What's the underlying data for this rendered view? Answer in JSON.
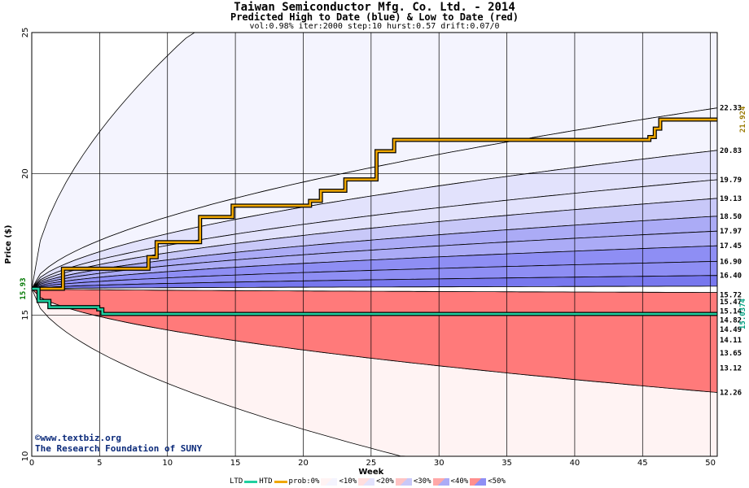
{
  "title": "Taiwan Semiconductor Mfg. Co. Ltd.  - 2014",
  "subtitle": "Predicted High to Date (blue) &  Low to Date (red)",
  "params": "vol:0.98% iter:2000 step:10 hurst:0.57 drift:0.07/0",
  "watermark": {
    "line1": "©www.textbiz.org",
    "line2": "The Research Foundation of SUNY"
  },
  "legend": {
    "ltd": "LTD",
    "htd": "HTD",
    "prob": "prob:0%",
    "p10": "<10%",
    "p20": "<20%",
    "p30": "<30%",
    "p40": "<40%",
    "p50": "<50%"
  },
  "colors": {
    "htd": "#f0a800",
    "ltd": "#20d0a0",
    "blue_bands": [
      "#f4f4fe",
      "#e2e2fc",
      "#c8c8f8",
      "#ababf6",
      "#8e8ef4",
      "#7777ee"
    ],
    "red_bands": [
      "#fff3f3",
      "#ffdede",
      "#ffc4c4",
      "#ffa8a8",
      "#ff8e8e",
      "#ff7a7a"
    ]
  },
  "chart_data": {
    "type": "area",
    "xlabel": "Week",
    "ylabel": "Price ($)",
    "xlim": [
      0,
      50.5
    ],
    "ylim": [
      10,
      25
    ],
    "xticks": [
      0,
      5,
      10,
      15,
      20,
      25,
      30,
      35,
      40,
      45,
      50
    ],
    "yticks": [
      10,
      15,
      20,
      25
    ],
    "grid": true,
    "start_price": 15.93,
    "start_price_label": "15.93",
    "upper_band_end_values": [
      22.33,
      20.83,
      19.79,
      19.13,
      18.5,
      17.97,
      17.45,
      16.9,
      16.4
    ],
    "lower_band_end_values": [
      15.72,
      15.47,
      15.14,
      14.82,
      14.49,
      14.11,
      13.65,
      13.12,
      12.26
    ],
    "right_labels": [
      "22.33",
      "20.83",
      "19.79",
      "19.13",
      "18.50",
      "17.97",
      "17.45",
      "16.90",
      "16.40",
      "15.72",
      "15.47",
      "15.14",
      "14.82",
      "14.49",
      "14.11",
      "13.65",
      "13.12",
      "12.26"
    ],
    "htd_final_label": "21.924",
    "ltd_final_label": "15.0374",
    "htd_series": {
      "name": "HTD",
      "x": [
        0,
        2.3,
        8.6,
        9.2,
        12.4,
        14.8,
        20.5,
        21.3,
        23.1,
        25.4,
        26.7,
        45.5,
        45.9,
        46.3,
        50.5
      ],
      "y": [
        15.93,
        16.64,
        17.05,
        17.58,
        18.47,
        18.87,
        19.04,
        19.4,
        19.8,
        20.8,
        21.2,
        21.3,
        21.6,
        21.92,
        21.92
      ]
    },
    "ltd_series": {
      "name": "LTD",
      "x": [
        0,
        0.5,
        1.3,
        4.9,
        5.2,
        16.4,
        46.5,
        50.5
      ],
      "y": [
        15.93,
        15.5,
        15.28,
        15.2,
        15.04,
        15.04,
        15.0374,
        15.0374
      ]
    }
  }
}
